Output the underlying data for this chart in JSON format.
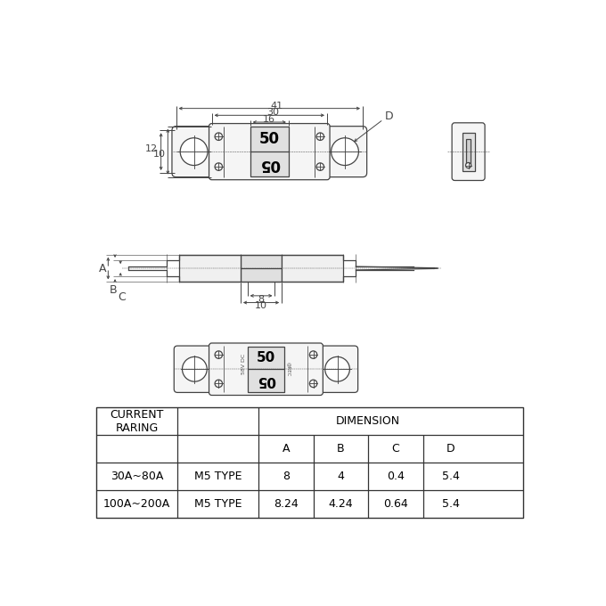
{
  "bg_color": "#ffffff",
  "line_color": "#444444",
  "dim_color": "#444444",
  "fuse_top": "50",
  "fuse_bot": "05",
  "label_58VDC": "58V DC",
  "dim_41": "41",
  "dim_30": "30",
  "dim_16": "16",
  "dim_12": "12",
  "dim_10": "10",
  "dim_D": "D",
  "dim_A": "A",
  "dim_B": "B",
  "dim_C": "C",
  "dim_8": "8",
  "dim_10b": "10",
  "table_col1_header": "CURRENT\nRARING",
  "table_dim_header": "DIMENSION",
  "table_subcols": [
    "A",
    "B",
    "C",
    "D"
  ],
  "table_rows": [
    [
      "30A~80A",
      "M5 TYPE",
      "8",
      "4",
      "0.4",
      "5.4"
    ],
    [
      "100A~200A",
      "M5 TYPE",
      "8.24",
      "4.24",
      "0.64",
      "5.4"
    ]
  ]
}
